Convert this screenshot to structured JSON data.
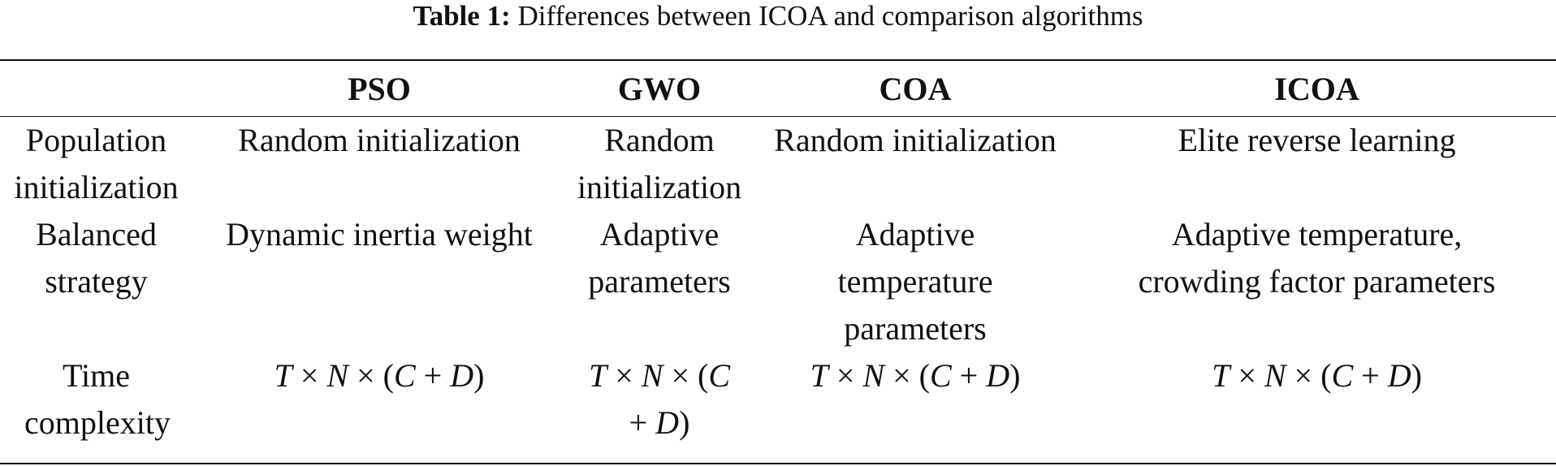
{
  "caption": {
    "label": "Table 1:",
    "text": "Differences between ICOA and comparison algorithms"
  },
  "table": {
    "headers": [
      "",
      "PSO",
      "GWO",
      "COA",
      "ICOA"
    ],
    "rows": [
      {
        "label": "Population initialization",
        "cells": [
          "Random initialization",
          "Random initialization",
          "Random initialization",
          "Elite reverse learning"
        ]
      },
      {
        "label": "Balanced strategy",
        "cells": [
          "Dynamic inertia weight",
          "Adaptive parameters",
          "Adaptive temperature parameters",
          "Adaptive temperature, crowding factor parameters"
        ]
      },
      {
        "label": "Time complexity",
        "cells": [
          "T × N × (C + D)",
          "T × N × (C + D)",
          "T × N × (C + D)",
          "T × N × (C + D)"
        ]
      }
    ]
  }
}
